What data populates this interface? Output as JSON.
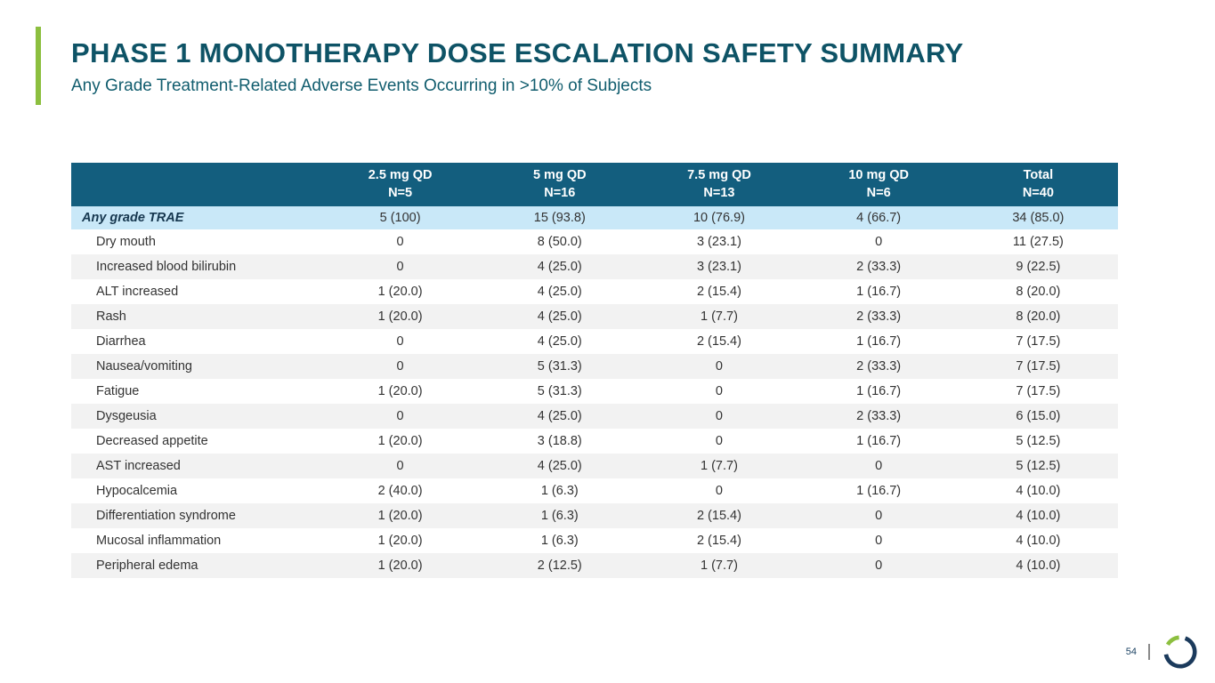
{
  "slide": {
    "title": "PHASE 1 MONOTHERAPY DOSE ESCALATION SAFETY SUMMARY",
    "subtitle": "Any Grade Treatment-Related Adverse Events Occurring in >10% of Subjects"
  },
  "colors": {
    "accent_green": "#8cbf3f",
    "title_teal": "#0e5366",
    "header_teal": "#135e7e",
    "highlight_blue": "#c9e8f8",
    "row_alt_gray": "#f2f2f2",
    "logo_navy": "#1b3a5c"
  },
  "table": {
    "columns": [
      {
        "label": "",
        "sublabel": ""
      },
      {
        "label": "2.5 mg QD",
        "sublabel": "N=5"
      },
      {
        "label": "5 mg QD",
        "sublabel": "N=16"
      },
      {
        "label": "7.5 mg QD",
        "sublabel": "N=13"
      },
      {
        "label": "10 mg QD",
        "sublabel": "N=6"
      },
      {
        "label": "Total",
        "sublabel": "N=40"
      }
    ],
    "summary_row": {
      "label": "Any grade TRAE",
      "values": [
        "5 (100)",
        "15 (93.8)",
        "10 (76.9)",
        "4 (66.7)",
        "34 (85.0)"
      ]
    },
    "rows": [
      {
        "label": "Dry mouth",
        "values": [
          "0",
          "8 (50.0)",
          "3 (23.1)",
          "0",
          "11 (27.5)"
        ]
      },
      {
        "label": "Increased blood bilirubin",
        "values": [
          "0",
          "4 (25.0)",
          "3 (23.1)",
          "2 (33.3)",
          "9 (22.5)"
        ]
      },
      {
        "label": "ALT increased",
        "values": [
          "1 (20.0)",
          "4 (25.0)",
          "2 (15.4)",
          "1 (16.7)",
          "8 (20.0)"
        ]
      },
      {
        "label": "Rash",
        "values": [
          "1 (20.0)",
          "4 (25.0)",
          "1 (7.7)",
          "2 (33.3)",
          "8 (20.0)"
        ]
      },
      {
        "label": "Diarrhea",
        "values": [
          "0",
          "4 (25.0)",
          "2 (15.4)",
          "1 (16.7)",
          "7 (17.5)"
        ]
      },
      {
        "label": "Nausea/vomiting",
        "values": [
          "0",
          "5 (31.3)",
          "0",
          "2 (33.3)",
          "7 (17.5)"
        ]
      },
      {
        "label": "Fatigue",
        "values": [
          "1 (20.0)",
          "5 (31.3)",
          "0",
          "1 (16.7)",
          "7 (17.5)"
        ]
      },
      {
        "label": "Dysgeusia",
        "values": [
          "0",
          "4 (25.0)",
          "0",
          "2 (33.3)",
          "6 (15.0)"
        ]
      },
      {
        "label": "Decreased appetite",
        "values": [
          "1 (20.0)",
          "3 (18.8)",
          "0",
          "1 (16.7)",
          "5 (12.5)"
        ]
      },
      {
        "label": "AST increased",
        "values": [
          "0",
          "4 (25.0)",
          "1 (7.7)",
          "0",
          "5 (12.5)"
        ]
      },
      {
        "label": "Hypocalcemia",
        "values": [
          "2 (40.0)",
          "1 (6.3)",
          "0",
          "1 (16.7)",
          "4 (10.0)"
        ]
      },
      {
        "label": "Differentiation syndrome",
        "values": [
          "1 (20.0)",
          "1 (6.3)",
          "2 (15.4)",
          "0",
          "4 (10.0)"
        ]
      },
      {
        "label": "Mucosal inflammation",
        "values": [
          "1 (20.0)",
          "1 (6.3)",
          "2 (15.4)",
          "0",
          "4 (10.0)"
        ]
      },
      {
        "label": "Peripheral edema",
        "values": [
          "1 (20.0)",
          "2 (12.5)",
          "1 (7.7)",
          "0",
          "4 (10.0)"
        ]
      }
    ]
  },
  "footer": {
    "page_number": "54"
  }
}
